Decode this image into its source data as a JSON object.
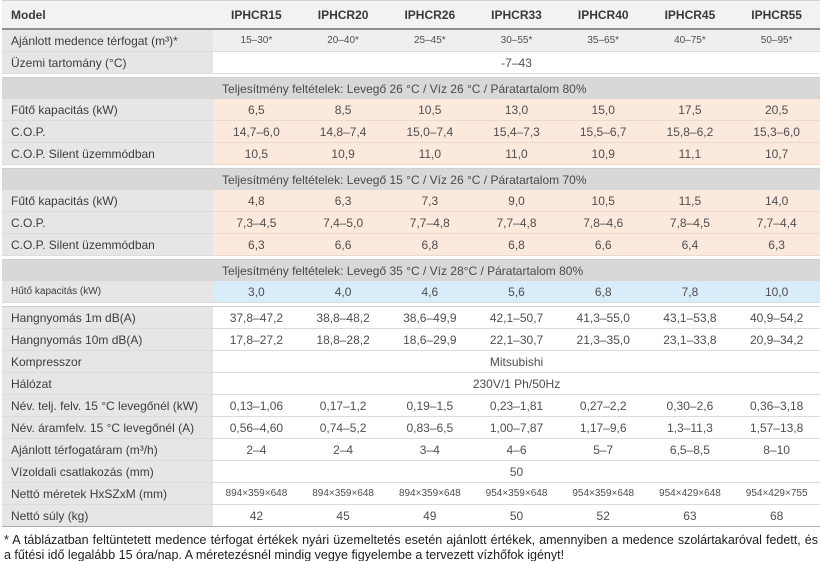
{
  "colors": {
    "header_bg": "#f2f2f2",
    "label_bg": "#e6e6e6",
    "section_bg": "#d8d8d8",
    "heat": "#fbe9dd",
    "cool": "#d9ecf9",
    "dim": "#efefef"
  },
  "table": {
    "columns": [
      "Model",
      "IPHCR15",
      "IPHCR20",
      "IPHCR26",
      "IPHCR33",
      "IPHCR40",
      "IPHCR45",
      "IPHCR55"
    ],
    "rows": [
      {
        "type": "data",
        "label": "Ajánlott medence térfogat (m³)*",
        "tone": "dim",
        "small_values": true,
        "values": [
          "15–30*",
          "20–40*",
          "25–45*",
          "30–55*",
          "35–65*",
          "40–75*",
          "50–95*"
        ]
      },
      {
        "type": "span",
        "label": "Üzemi tartomány (°C)",
        "value": "-7–43"
      },
      {
        "type": "gap"
      },
      {
        "type": "section",
        "title": "Teljesítmény feltételek: Levegő 26 °C / Víz 26 °C / Páratartalom 80%"
      },
      {
        "type": "data",
        "label": "Fűtő kapacitás (kW)",
        "tone": "heat",
        "values": [
          "6,5",
          "8,5",
          "10,5",
          "13,0",
          "15,0",
          "17,5",
          "20,5"
        ]
      },
      {
        "type": "data",
        "label": "C.O.P.",
        "tone": "heat",
        "values": [
          "14,7–6,0",
          "14,8–7,4",
          "15,0–7,4",
          "15,4–7,3",
          "15,5–6,7",
          "15,8–6,2",
          "15,3–6,0"
        ]
      },
      {
        "type": "data",
        "label": "C.O.P. Silent üzemmódban",
        "tone": "heat",
        "values": [
          "10,5",
          "10,9",
          "11,0",
          "11,0",
          "10,9",
          "11,1",
          "10,7"
        ]
      },
      {
        "type": "gap"
      },
      {
        "type": "section",
        "title": "Teljesítmény feltételek: Levegő 15 °C / Víz 26 °C / Páratartalom 70%"
      },
      {
        "type": "data",
        "label": "Fűtő kapacitás (kW)",
        "tone": "heat",
        "values": [
          "4,8",
          "6,3",
          "7,3",
          "9,0",
          "10,5",
          "11,5",
          "14,0"
        ]
      },
      {
        "type": "data",
        "label": "C.O.P.",
        "tone": "heat",
        "values": [
          "7,3–4,5",
          "7,4–5,0",
          "7,7–4,8",
          "7,7–4,8",
          "7,8–4,6",
          "7,8–4,5",
          "7,7–4,4"
        ]
      },
      {
        "type": "data",
        "label": "C.O.P. Silent üzemmódban",
        "tone": "heat",
        "values": [
          "6,3",
          "6,6",
          "6,8",
          "6,8",
          "6,6",
          "6,4",
          "6,3"
        ]
      },
      {
        "type": "gap"
      },
      {
        "type": "section",
        "title": "Teljesítmény feltételek: Levegő 35 °C / Víz 28°C / Páratartalom 80%"
      },
      {
        "type": "data",
        "label": "Hűtő kapacitás (kW)",
        "tone": "cool",
        "small_label": true,
        "values": [
          "3,0",
          "4,0",
          "4,6",
          "5,6",
          "6,8",
          "7,8",
          "10,0"
        ]
      },
      {
        "type": "gap"
      },
      {
        "type": "data",
        "label": "Hangnyomás 1m dB(A)",
        "values": [
          "37,8–47,2",
          "38,8–48,2",
          "38,6–49,9",
          "42,1–50,7",
          "41,3–55,0",
          "43,1–53,8",
          "40,9–54,2"
        ]
      },
      {
        "type": "data",
        "label": "Hangnyomás 10m dB(A)",
        "values": [
          "17,8–27,2",
          "18,8–28,2",
          "18,6–29,9",
          "22,1–30,7",
          "21,3–35,0",
          "23,1–33,8",
          "20,9–34,2"
        ]
      },
      {
        "type": "span",
        "label": "Kompresszor",
        "value": "Mitsubishi"
      },
      {
        "type": "span",
        "label": "Hálózat",
        "value": "230V/1 Ph/50Hz"
      },
      {
        "type": "data",
        "label": "Név. telj. felv. 15 °C levegőnél (kW)",
        "values": [
          "0,13–1,06",
          "0,17–1,2",
          "0,19–1,5",
          "0,23–1,81",
          "0,27–2,2",
          "0,30–2,6",
          "0,36–3,18"
        ]
      },
      {
        "type": "data",
        "label": "Név. áramfelv. 15 °C levegőnél (A)",
        "values": [
          "0,56–4,60",
          "0,74–5,2",
          "0,83–6,5",
          "1,00–7,87",
          "1,17–9,6",
          "1,3–11,3",
          "1,57–13,8"
        ]
      },
      {
        "type": "data",
        "label": "Ajánlott térfogatáram (m³/h)",
        "values": [
          "2–4",
          "2–4",
          "3–4",
          "4–6",
          "5–7",
          "6,5–8,5",
          "8–10"
        ]
      },
      {
        "type": "span",
        "label": "Vízoldali csatlakozás (mm)",
        "value": "50"
      },
      {
        "type": "data",
        "label": "Nettó méretek HxSZxM (mm)",
        "small_values": true,
        "values": [
          "894×359×648",
          "894×359×648",
          "894×359×648",
          "954×359×648",
          "954×359×648",
          "954×429×648",
          "954×429×755"
        ]
      },
      {
        "type": "data",
        "label": "Nettó súly (kg)",
        "last": true,
        "values": [
          "42",
          "45",
          "49",
          "50",
          "52",
          "63",
          "68"
        ]
      }
    ]
  },
  "footnote": "* A táblázatban feltüntetett medence térfogat értékek nyári üzemeltetés esetén ajánlott értékek, amennyiben a medence szolártakaróval fedett, és a fűtési idő legalább 15 óra/nap. A méretezésnél mindig vegye figyelembe a tervezett vízhőfok igényt!"
}
